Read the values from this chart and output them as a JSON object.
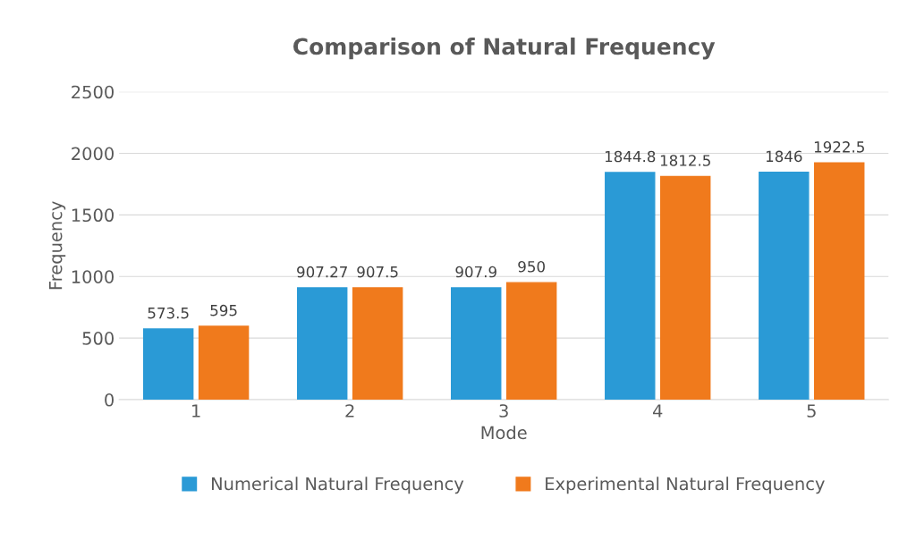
{
  "chart_data": {
    "type": "bar",
    "title": "Comparison of Natural Frequency",
    "xlabel": "Mode",
    "ylabel": "Frequency",
    "categories": [
      "1",
      "2",
      "3",
      "4",
      "5"
    ],
    "series": [
      {
        "name": "Numerical Natural Frequency",
        "color": "#2a9ad6",
        "values": [
          573.5,
          907.27,
          907.9,
          1844.8,
          1846
        ]
      },
      {
        "name": "Experimental Natural Frequency",
        "color": "#f07a1c",
        "values": [
          595,
          907.5,
          950,
          1812.5,
          1922.5
        ]
      }
    ],
    "ylim": [
      0,
      2500
    ],
    "yticks": [
      0,
      500,
      1000,
      1500,
      2000,
      2500
    ],
    "grid": "y",
    "legend": "bottom",
    "data_labels": true
  }
}
